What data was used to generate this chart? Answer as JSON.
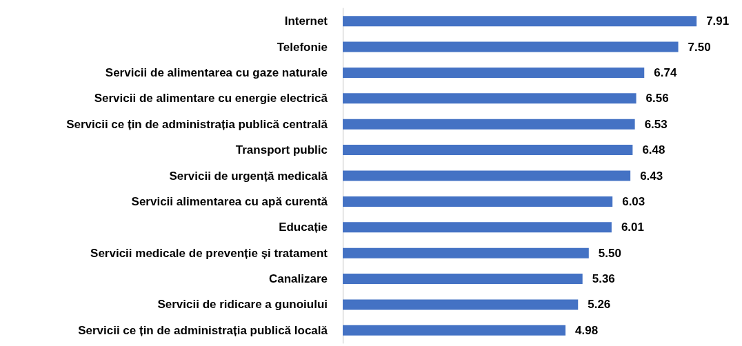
{
  "chart_data": {
    "type": "bar",
    "orientation": "horizontal",
    "categories": [
      "Internet",
      "Telefonie",
      "Servicii de alimentarea cu gaze naturale",
      "Servicii de alimentare cu energie electrică",
      "Servicii ce țin de administrația publică centrală",
      "Transport public",
      "Servicii de urgență medicală",
      "Servicii alimentarea cu apă curentă",
      "Educație",
      "Servicii medicale de prevenție și tratament",
      "Canalizare",
      "Servicii de ridicare a gunoiului",
      "Servicii ce țin de administrația publică locală"
    ],
    "values": [
      7.91,
      7.5,
      6.74,
      6.56,
      6.53,
      6.48,
      6.43,
      6.03,
      6.01,
      5.5,
      5.36,
      5.26,
      4.98
    ],
    "value_labels": [
      "7.91",
      "7.50",
      "6.74",
      "6.56",
      "6.53",
      "6.48",
      "6.43",
      "6.03",
      "6.01",
      "5.50",
      "5.36",
      "5.26",
      "4.98"
    ],
    "color": "#4472c4"
  }
}
